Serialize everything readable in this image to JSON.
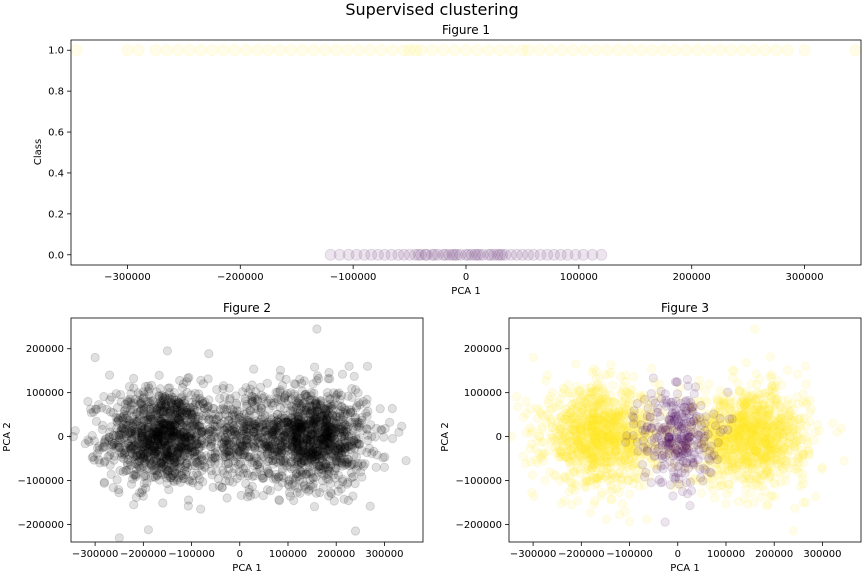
{
  "suptitle": "Supervised clustering",
  "chart_data": [
    {
      "type": "scatter",
      "title": "Figure 1",
      "xlabel": "PCA 1",
      "ylabel": "Class",
      "xlim": [
        -350000,
        350000
      ],
      "ylim": [
        -0.05,
        1.05
      ],
      "xticks": [
        -300000,
        -200000,
        -100000,
        0,
        100000,
        200000,
        300000
      ],
      "xtick_labels": [
        "−300000",
        "−200000",
        "−100000",
        "0",
        "100000",
        "200000",
        "300000"
      ],
      "yticks": [
        0.0,
        0.2,
        0.4,
        0.6,
        0.8,
        1.0
      ],
      "ytick_labels": [
        "0.0",
        "0.2",
        "0.4",
        "0.6",
        "0.8",
        "1.0"
      ],
      "grid": false,
      "marker_alpha": 0.1,
      "series": [
        {
          "color": "#440154",
          "y": 0,
          "x": [
            -120000,
            -112000,
            -104000,
            -97000,
            -90000,
            -84000,
            -78000,
            -72000,
            -66000,
            -60000,
            -55000,
            -50000,
            -45000,
            -40000,
            -35000,
            -30000,
            -25000,
            -20000,
            -15000,
            -10000,
            -5000,
            0,
            5000,
            10000,
            15000,
            20000,
            25000,
            30000,
            35000,
            40000,
            45000,
            50000,
            55000,
            60000,
            66000,
            72000,
            78000,
            84000,
            90000,
            97000,
            104000,
            112000,
            120000,
            -42000,
            -28000,
            -18000,
            -8000,
            2000,
            12000,
            22000,
            32000,
            -36000,
            -12000,
            8000,
            28000
          ]
        },
        {
          "color": "#fde725",
          "y": 1,
          "x": [
            -345000,
            -300000,
            -290000,
            -275000,
            -265000,
            -255000,
            -245000,
            -235000,
            -225000,
            -215000,
            -205000,
            -195000,
            -185000,
            -175000,
            -165000,
            -155000,
            -145000,
            -135000,
            -125000,
            -115000,
            -105000,
            -95000,
            -85000,
            -75000,
            -65000,
            -55000,
            -50000,
            -45000,
            -40000,
            -30000,
            -20000,
            -10000,
            0,
            10000,
            20000,
            30000,
            40000,
            50000,
            55000,
            65000,
            75000,
            85000,
            95000,
            105000,
            115000,
            125000,
            135000,
            145000,
            155000,
            165000,
            175000,
            185000,
            195000,
            205000,
            215000,
            225000,
            235000,
            245000,
            255000,
            265000,
            275000,
            285000,
            300000,
            345000
          ]
        }
      ]
    },
    {
      "type": "scatter",
      "title": "Figure 2",
      "xlabel": "PCA 1",
      "ylabel": "PCA 2",
      "xlim": [
        -350000,
        380000
      ],
      "ylim": [
        -240000,
        270000
      ],
      "xticks": [
        -300000,
        -200000,
        -100000,
        0,
        100000,
        200000,
        300000
      ],
      "xtick_labels": [
        "−300000",
        "−200000",
        "−100000",
        "0",
        "100000",
        "200000",
        "300000"
      ],
      "yticks": [
        -200000,
        -100000,
        0,
        100000,
        200000
      ],
      "ytick_labels": [
        "−200000",
        "−100000",
        "0",
        "100000",
        "200000"
      ],
      "grid": false,
      "marker_alpha": 0.12,
      "series": [
        {
          "color": "#000000",
          "clusters": [
            {
              "cx": -160000,
              "cy": 0,
              "sx": 58000,
              "sy": 55000,
              "n": 1150
            },
            {
              "cx": 150000,
              "cy": 0,
              "sx": 58000,
              "sy": 55000,
              "n": 1150
            },
            {
              "cx": 0,
              "cy": 0,
              "sx": 42000,
              "sy": 55000,
              "n": 320
            }
          ],
          "points": [
            [
              -345000,
              0
            ],
            [
              -315000,
              80000
            ],
            [
              -300000,
              180000
            ],
            [
              -270000,
              140000
            ],
            [
              -220000,
              -155000
            ],
            [
              -150000,
              195000
            ],
            [
              160000,
              245000
            ],
            [
              240000,
              -215000
            ],
            [
              265000,
              160000
            ],
            [
              345000,
              -55000
            ],
            [
              330000,
              10000
            ],
            [
              300000,
              -70000
            ],
            [
              -290000,
              -60000
            ]
          ]
        }
      ]
    },
    {
      "type": "scatter",
      "title": "Figure 3",
      "xlabel": "PCA 1",
      "ylabel": "PCA 2",
      "xlim": [
        -350000,
        380000
      ],
      "ylim": [
        -240000,
        270000
      ],
      "xticks": [
        -300000,
        -200000,
        -100000,
        0,
        100000,
        200000,
        300000
      ],
      "xtick_labels": [
        "−300000",
        "−200000",
        "−100000",
        "0",
        "100000",
        "200000",
        "300000"
      ],
      "yticks": [
        -200000,
        -100000,
        0,
        100000,
        200000
      ],
      "ytick_labels": [
        "−200000",
        "−100000",
        "0",
        "100000",
        "200000"
      ],
      "grid": false,
      "marker_alpha": 0.1,
      "series": [
        {
          "color": "#fde725",
          "clusters": [
            {
              "cx": -160000,
              "cy": 0,
              "sx": 58000,
              "sy": 55000,
              "n": 1150
            },
            {
              "cx": 150000,
              "cy": 0,
              "sx": 58000,
              "sy": 55000,
              "n": 1150
            }
          ],
          "points": [
            [
              -345000,
              0
            ],
            [
              -315000,
              80000
            ],
            [
              -300000,
              180000
            ],
            [
              -270000,
              140000
            ],
            [
              -220000,
              -155000
            ],
            [
              160000,
              245000
            ],
            [
              240000,
              -215000
            ],
            [
              265000,
              160000
            ],
            [
              345000,
              -55000
            ],
            [
              330000,
              10000
            ],
            [
              300000,
              -70000
            ],
            [
              -290000,
              -60000
            ]
          ]
        },
        {
          "color": "#440154",
          "clusters": [
            {
              "cx": 0,
              "cy": 0,
              "sx": 38000,
              "sy": 55000,
              "n": 320
            }
          ],
          "points": [
            [
              -5000,
              125000
            ],
            [
              20000,
              130000
            ],
            [
              10000,
              -125000
            ],
            [
              -15000,
              -110000
            ]
          ]
        }
      ]
    }
  ]
}
